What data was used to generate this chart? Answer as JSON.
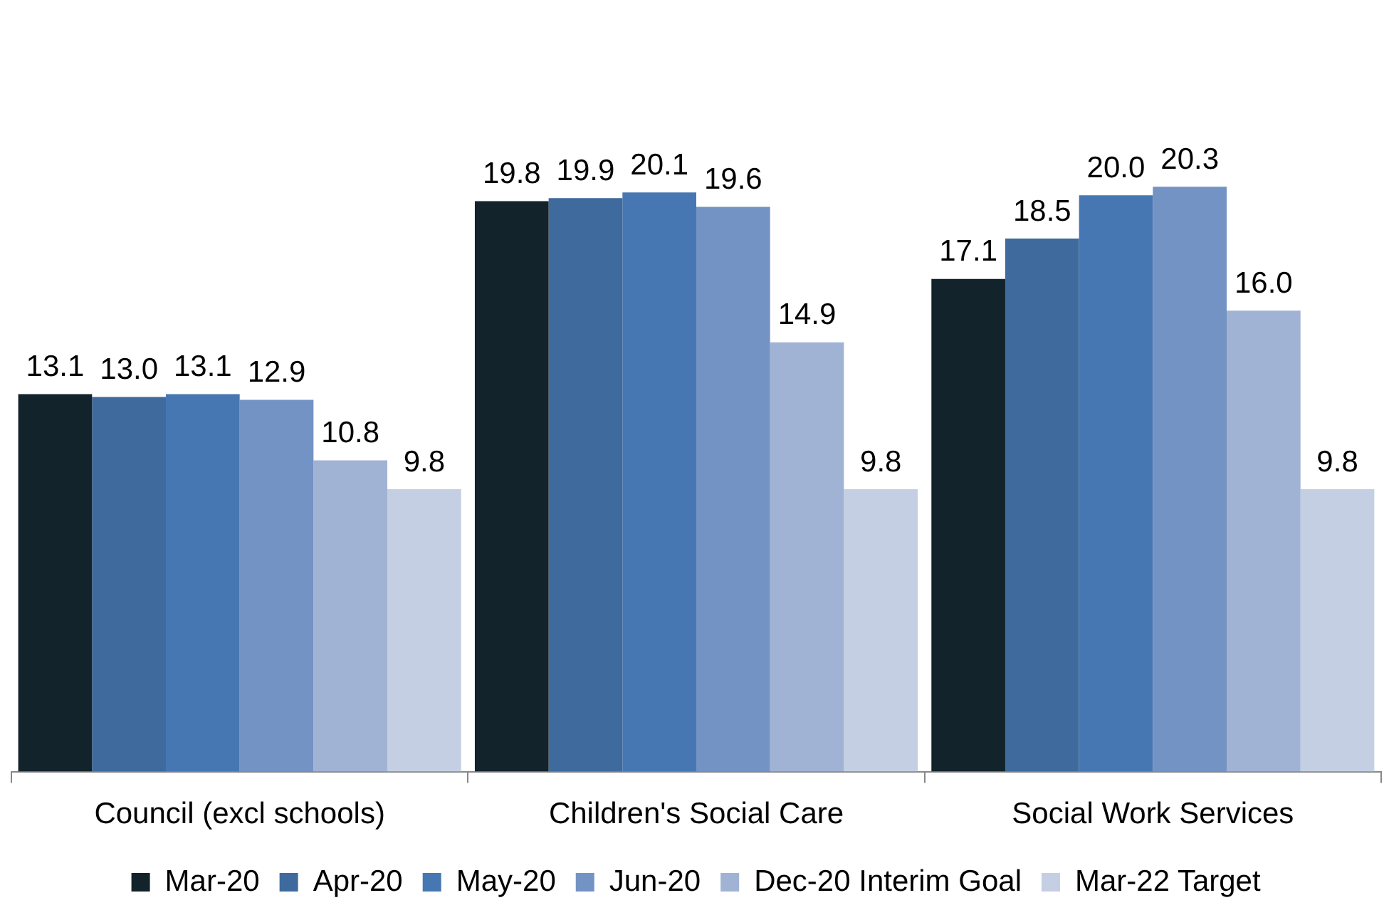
{
  "chart_data": {
    "type": "bar",
    "categories": [
      "Council (excl schools)",
      "Children's Social Care",
      "Social Work Services"
    ],
    "series": [
      {
        "name": "Mar-20",
        "color": "#12232b",
        "values": [
          13.1,
          19.8,
          17.1
        ],
        "value_labels": [
          "13.1",
          "19.8",
          "17.1"
        ]
      },
      {
        "name": "Apr-20",
        "color": "#3e6a9e",
        "values": [
          13.0,
          19.9,
          18.5
        ],
        "value_labels": [
          "13.0",
          "19.9",
          "18.5"
        ]
      },
      {
        "name": "May-20",
        "color": "#4677b3",
        "values": [
          13.1,
          20.1,
          20.0
        ],
        "value_labels": [
          "13.1",
          "20.1",
          "20.0"
        ]
      },
      {
        "name": "Jun-20",
        "color": "#7393c4",
        "values": [
          12.9,
          19.6,
          20.3
        ],
        "value_labels": [
          "12.9",
          "19.6",
          "20.3"
        ]
      },
      {
        "name": "Dec-20 Interim Goal",
        "color": "#a1b3d4",
        "values": [
          10.8,
          14.9,
          16.0
        ],
        "value_labels": [
          "10.8",
          "14.9",
          "16.0"
        ]
      },
      {
        "name": "Mar-22 Target",
        "color": "#c4cfe3",
        "values": [
          9.8,
          9.8,
          9.8
        ],
        "value_labels": [
          "9.8",
          "9.8",
          "9.8"
        ]
      }
    ],
    "legend": "bottom",
    "grid": false,
    "tick_labels": "x"
  }
}
